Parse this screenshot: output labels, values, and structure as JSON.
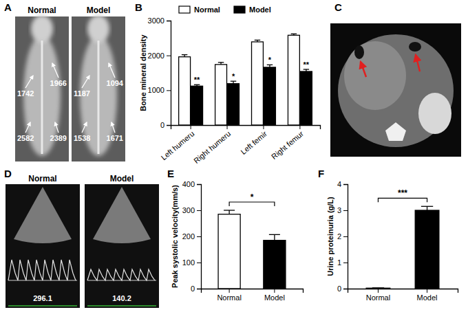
{
  "chart_data": [
    {
      "type": "bar",
      "panel": "B",
      "y_label": "Bone mineral density",
      "categories": [
        "Left humeru",
        "Right humeru",
        "Left femir",
        "Right femur"
      ],
      "series": [
        {
          "name": "Normal",
          "color": "#ffffff",
          "values": [
            1960,
            1740,
            2390,
            2580
          ],
          "errors": [
            60,
            60,
            50,
            40
          ]
        },
        {
          "name": "Model",
          "color": "#000000",
          "values": [
            1120,
            1190,
            1660,
            1540
          ],
          "errors": [
            40,
            70,
            70,
            60
          ],
          "significance": [
            "**",
            "*",
            "*",
            "**"
          ]
        }
      ],
      "ylim": [
        0,
        3000
      ],
      "yticks": [
        0,
        1000,
        2000,
        3000
      ],
      "legend": "top-left"
    },
    {
      "type": "bar",
      "panel": "E",
      "y_label": "Peak systolic velocity(mm/s)",
      "categories": [
        "Normal",
        "Model"
      ],
      "values": [
        285,
        185
      ],
      "errors": [
        15,
        22
      ],
      "colors": [
        "#ffffff",
        "#000000"
      ],
      "ylim": [
        0,
        400
      ],
      "yticks": [
        0,
        100,
        200,
        300,
        400
      ],
      "significance": "*"
    },
    {
      "type": "bar",
      "panel": "F",
      "y_label": "Urine proteinuria (g/L)",
      "categories": [
        "Normal",
        "Model"
      ],
      "values": [
        0.02,
        3.0
      ],
      "errors": [
        0.01,
        0.15
      ],
      "colors": [
        "#ffffff",
        "#000000"
      ],
      "ylim": [
        0,
        4
      ],
      "yticks": [
        0,
        1,
        2,
        3,
        4
      ],
      "significance": "***"
    }
  ],
  "images": {
    "A": {
      "panel": "A",
      "labels": [
        "Normal",
        "Model"
      ],
      "values": [
        [
          1742,
          1966,
          2582,
          2389
        ],
        [
          1187,
          1094,
          1538,
          1671
        ]
      ]
    },
    "C": {
      "panel": "C"
    },
    "D": {
      "panel": "D",
      "labels": [
        "Normal",
        "Model"
      ],
      "values": [
        296.1,
        140.2
      ]
    }
  }
}
